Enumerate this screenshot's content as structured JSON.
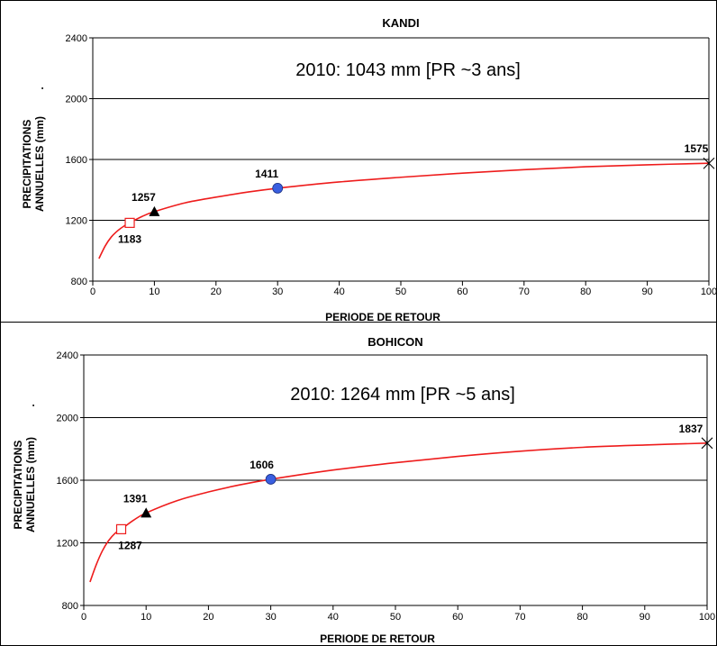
{
  "chart_data": [
    {
      "type": "line",
      "title": "KANDI",
      "xlabel": "PERIODE DE RETOUR",
      "ylabel_line1": "PRECIPITATIONS",
      "ylabel_line2": "ANNUELLES (mm)",
      "ylabel_dot": ".",
      "annotation": "2010: 1043 mm [PR ~3 ans]",
      "xlim": [
        0,
        100
      ],
      "ylim": [
        800,
        2400
      ],
      "xticks": [
        "0",
        "10",
        "20",
        "30",
        "40",
        "50",
        "60",
        "70",
        "80",
        "90",
        "100"
      ],
      "yticks": [
        "800",
        "1200",
        "1600",
        "2000",
        "2400"
      ],
      "grid": true,
      "curve": {
        "x": [
          1,
          2,
          3,
          4,
          5,
          6,
          8,
          10,
          15,
          20,
          25,
          30,
          40,
          50,
          60,
          70,
          80,
          90,
          100
        ],
        "y": [
          948,
          1030,
          1090,
          1130,
          1160,
          1183,
          1225,
          1257,
          1315,
          1352,
          1385,
          1411,
          1452,
          1483,
          1510,
          1533,
          1552,
          1565,
          1575
        ]
      },
      "points": [
        {
          "x": 6,
          "y": 1183,
          "label": "1183",
          "marker": "square"
        },
        {
          "x": 10,
          "y": 1257,
          "label": "1257",
          "marker": "triangle"
        },
        {
          "x": 30,
          "y": 1411,
          "label": "1411",
          "marker": "circle"
        },
        {
          "x": 100,
          "y": 1575,
          "label": "1575",
          "marker": "star"
        }
      ]
    },
    {
      "type": "line",
      "title": "BOHICON",
      "xlabel": "PERIODE DE RETOUR",
      "ylabel_line1": "PRECIPITATIONS",
      "ylabel_line2": "ANNUELLES (mm)",
      "ylabel_dot": ".",
      "annotation": "2010: 1264 mm [PR ~5 ans]",
      "xlim": [
        0,
        100
      ],
      "ylim": [
        800,
        2400
      ],
      "xticks": [
        "0",
        "10",
        "20",
        "30",
        "40",
        "50",
        "60",
        "70",
        "80",
        "90",
        "100"
      ],
      "yticks": [
        "800",
        "1200",
        "1600",
        "2000",
        "2400"
      ],
      "grid": true,
      "curve": {
        "x": [
          1,
          2,
          3,
          4,
          5,
          6,
          8,
          10,
          15,
          20,
          25,
          30,
          40,
          50,
          60,
          70,
          80,
          90,
          100
        ],
        "y": [
          950,
          1060,
          1150,
          1215,
          1260,
          1287,
          1345,
          1391,
          1470,
          1525,
          1570,
          1606,
          1665,
          1712,
          1752,
          1785,
          1810,
          1825,
          1837
        ]
      },
      "points": [
        {
          "x": 6,
          "y": 1287,
          "label": "1287",
          "marker": "square"
        },
        {
          "x": 10,
          "y": 1391,
          "label": "1391",
          "marker": "triangle"
        },
        {
          "x": 30,
          "y": 1606,
          "label": "1606",
          "marker": "circle"
        },
        {
          "x": 100,
          "y": 1837,
          "label": "1837",
          "marker": "star"
        }
      ]
    }
  ],
  "colors": {
    "curve": "#ee1c1c",
    "square_stroke": "#ee1c1c",
    "circle_fill": "#3a5fe0",
    "triangle_fill": "#000000",
    "star_stroke": "#000000"
  }
}
